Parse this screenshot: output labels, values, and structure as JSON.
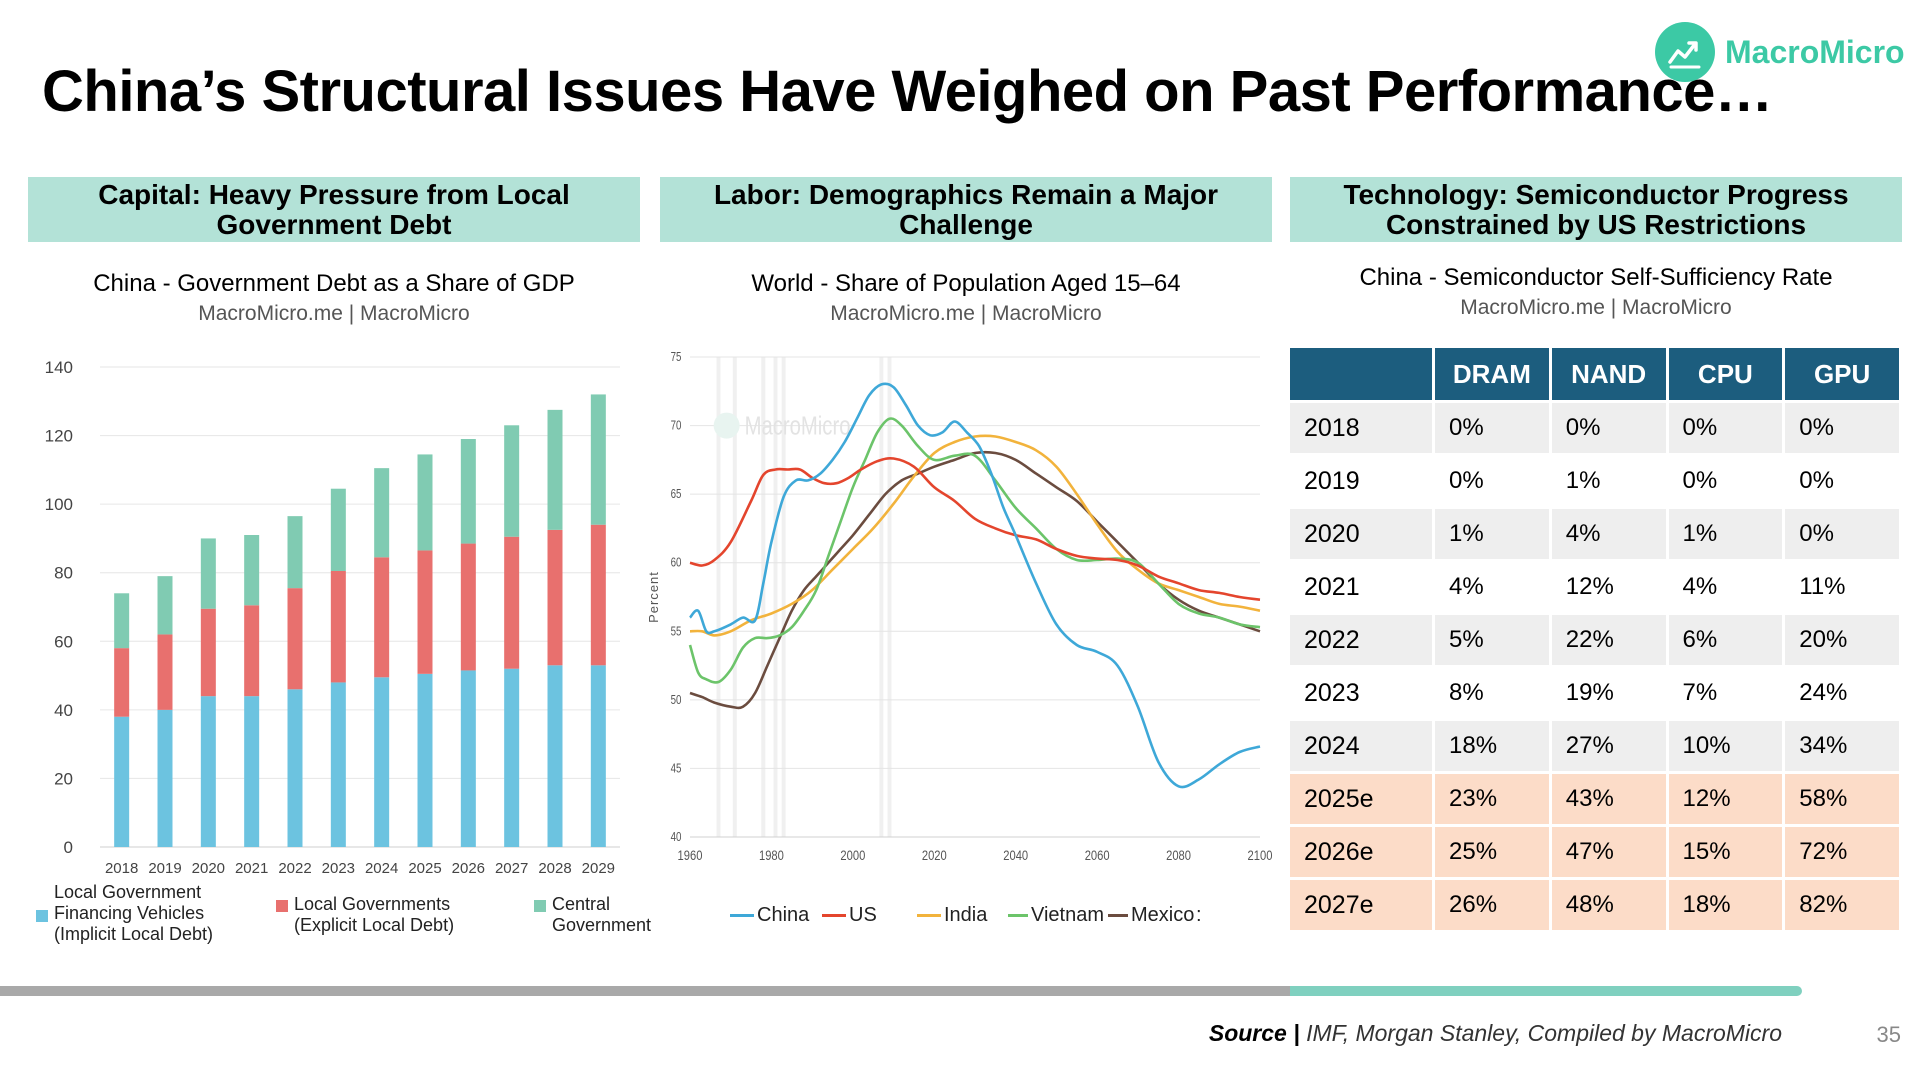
{
  "slide": {
    "title": "China’s Structural Issues Have Weighed on Past Performance…",
    "logo_text": "MacroMicro",
    "source_label": "Source",
    "source_text": "IMF, Morgan Stanley, Compiled by MacroMicro",
    "page_number": "35",
    "colors": {
      "accent": "#3cc9a5",
      "header_bg": "#b3e2d7",
      "table_header": "#1c5d7e",
      "estimate_row": "#fcdcc8"
    }
  },
  "panels": [
    {
      "header": "Capital: Heavy Pressure from Local Government Debt",
      "chart_title": "China - Government Debt as a Share of GDP",
      "chart_source": "MacroMicro.me | MacroMicro"
    },
    {
      "header": "Labor: Demographics Remain a Major Challenge",
      "chart_title": "World - Share of Population Aged 15–64",
      "chart_source": "MacroMicro.me | MacroMicro"
    },
    {
      "header": "Technology: Semiconductor Progress Constrained by US Restrictions",
      "chart_title": "China - Semiconductor Self-Sufficiency Rate",
      "chart_source": "MacroMicro.me | MacroMicro"
    }
  ],
  "chart_data": [
    {
      "type": "bar",
      "stacked": true,
      "title": "China - Government Debt as a Share of GDP",
      "categories": [
        "2018",
        "2019",
        "2020",
        "2021",
        "2022",
        "2023",
        "2024",
        "2025",
        "2026",
        "2027",
        "2028",
        "2029"
      ],
      "series": [
        {
          "name": "Local Government Financing Vehicles (Implicit Local Debt)",
          "color": "#6cc3e0",
          "values": [
            38,
            40,
            44,
            44,
            46,
            48,
            49.5,
            50.5,
            51.5,
            52,
            53,
            53
          ]
        },
        {
          "name": "Local Governments (Explicit Local Debt)",
          "color": "#e8706e",
          "values": [
            20,
            22,
            25.5,
            26.5,
            29.5,
            32.5,
            35,
            36,
            37,
            38.5,
            39.5,
            41
          ]
        },
        {
          "name": "Central Government",
          "color": "#80cbb2",
          "values": [
            16,
            17,
            20.5,
            20.5,
            21,
            24,
            26,
            28,
            30.5,
            32.5,
            35,
            38
          ]
        }
      ],
      "ylim": [
        0,
        140
      ],
      "yticks": [
        0,
        20,
        40,
        60,
        80,
        100,
        120,
        140
      ],
      "xlabel": "",
      "ylabel": "",
      "grid": true,
      "legend": "bottom"
    },
    {
      "type": "line",
      "title": "World - Share of Population Aged 15–64",
      "ylabel": "Percent",
      "xlim": [
        1960,
        2100
      ],
      "ylim": [
        40,
        75
      ],
      "xticks": [
        1960,
        1980,
        2000,
        2020,
        2040,
        2060,
        2080,
        2100
      ],
      "yticks": [
        40,
        45,
        50,
        55,
        60,
        65,
        70,
        75
      ],
      "watermark": "MacroMicro",
      "legend_truncated": ":",
      "series": [
        {
          "name": "China",
          "color": "#3ea8d8",
          "x": [
            1960,
            1962,
            1964,
            1966,
            1970,
            1973,
            1976,
            1978,
            1980,
            1983,
            1986,
            1989,
            1992,
            1995,
            1998,
            2001,
            2004,
            2007,
            2010,
            2013,
            2016,
            2019,
            2022,
            2025,
            2028,
            2031,
            2034,
            2037,
            2040,
            2045,
            2050,
            2055,
            2060,
            2065,
            2070,
            2075,
            2080,
            2085,
            2090,
            2095,
            2100
          ],
          "y": [
            56,
            56.5,
            55,
            55,
            55.5,
            56,
            55.8,
            58.5,
            61.5,
            64.8,
            66,
            66,
            66.5,
            67.5,
            68.8,
            70.5,
            72.2,
            73,
            72.8,
            71.5,
            70,
            69.3,
            69.5,
            70.3,
            69.5,
            68.5,
            66.5,
            64,
            62,
            58.5,
            55.5,
            54,
            53.5,
            52.5,
            49.5,
            45.5,
            43.7,
            44.2,
            45.3,
            46.2,
            46.6
          ]
        },
        {
          "name": "US",
          "color": "#e4452d",
          "x": [
            1960,
            1963,
            1966,
            1970,
            1975,
            1978,
            1981,
            1984,
            1987,
            1990,
            1993,
            1996,
            1999,
            2002,
            2006,
            2010,
            2015,
            2020,
            2025,
            2030,
            2035,
            2040,
            2045,
            2050,
            2055,
            2060,
            2065,
            2070,
            2075,
            2080,
            2085,
            2090,
            2095,
            2100
          ],
          "y": [
            60,
            59.8,
            60.2,
            61.5,
            64.5,
            66.4,
            66.8,
            66.8,
            66.8,
            66.2,
            65.8,
            65.8,
            66.2,
            66.8,
            67.4,
            67.6,
            67,
            65.5,
            64.5,
            63.2,
            62.5,
            62,
            61.7,
            61,
            60.5,
            60.3,
            60.2,
            59.8,
            59,
            58.5,
            58,
            57.8,
            57.5,
            57.3
          ]
        },
        {
          "name": "India",
          "color": "#f2b33c",
          "x": [
            1960,
            1963,
            1966,
            1970,
            1975,
            1980,
            1985,
            1990,
            1995,
            2000,
            2005,
            2010,
            2015,
            2020,
            2025,
            2030,
            2035,
            2040,
            2045,
            2050,
            2055,
            2060,
            2065,
            2070,
            2075,
            2080,
            2085,
            2090,
            2095,
            2100
          ],
          "y": [
            55,
            55,
            54.7,
            55,
            55.8,
            56.3,
            57,
            58,
            59.5,
            61,
            62.5,
            64.3,
            66.3,
            68,
            68.8,
            69.2,
            69.2,
            68.8,
            68.2,
            67,
            65,
            62.8,
            60.8,
            59.5,
            58.5,
            58,
            57.5,
            57,
            56.8,
            56.5
          ]
        },
        {
          "name": "Vietnam",
          "color": "#6cc46a",
          "x": [
            1960,
            1962,
            1964,
            1967,
            1970,
            1973,
            1976,
            1979,
            1982,
            1985,
            1988,
            1991,
            1994,
            1997,
            2000,
            2003,
            2006,
            2009,
            2012,
            2016,
            2020,
            2025,
            2030,
            2035,
            2040,
            2045,
            2050,
            2055,
            2060,
            2065,
            2070,
            2075,
            2080,
            2085,
            2090,
            2095,
            2100
          ],
          "y": [
            54,
            52,
            51.5,
            51.3,
            52.2,
            53.8,
            54.5,
            54.5,
            54.7,
            55.3,
            56.5,
            58,
            60.5,
            63,
            65.5,
            67.5,
            69.5,
            70.5,
            70,
            68.5,
            67.5,
            67.8,
            67.8,
            66,
            64,
            62.5,
            61,
            60.2,
            60.2,
            60.3,
            60,
            58.5,
            57,
            56.3,
            56,
            55.5,
            55.3
          ]
        },
        {
          "name": "Mexico",
          "color": "#6b4c3f",
          "x": [
            1960,
            1963,
            1966,
            1970,
            1973,
            1976,
            1979,
            1982,
            1985,
            1988,
            1991,
            1994,
            1997,
            2000,
            2004,
            2008,
            2012,
            2016,
            2020,
            2025,
            2030,
            2035,
            2040,
            2045,
            2050,
            2055,
            2060,
            2065,
            2070,
            2075,
            2080,
            2085,
            2090,
            2095,
            2100
          ],
          "y": [
            50.5,
            50.2,
            49.8,
            49.5,
            49.5,
            50.5,
            52.5,
            54.5,
            56.5,
            58,
            59,
            60,
            61,
            62,
            63.5,
            65,
            66,
            66.5,
            67,
            67.5,
            68,
            68,
            67.5,
            66.5,
            65.5,
            64.5,
            63,
            61.5,
            60,
            58.5,
            57.3,
            56.5,
            56,
            55.5,
            55
          ]
        }
      ]
    },
    {
      "type": "table",
      "title": "China - Semiconductor Self-Sufficiency Rate",
      "columns": [
        "",
        "DRAM",
        "NAND",
        "CPU",
        "GPU"
      ],
      "rows": [
        [
          "2018",
          "0%",
          "0%",
          "0%",
          "0%"
        ],
        [
          "2019",
          "0%",
          "1%",
          "0%",
          "0%"
        ],
        [
          "2020",
          "1%",
          "4%",
          "1%",
          "0%"
        ],
        [
          "2021",
          "4%",
          "12%",
          "4%",
          "11%"
        ],
        [
          "2022",
          "5%",
          "22%",
          "6%",
          "20%"
        ],
        [
          "2023",
          "8%",
          "19%",
          "7%",
          "24%"
        ],
        [
          "2024",
          "18%",
          "27%",
          "10%",
          "34%"
        ],
        [
          "2025e",
          "23%",
          "43%",
          "12%",
          "58%"
        ],
        [
          "2026e",
          "25%",
          "47%",
          "15%",
          "72%"
        ],
        [
          "2027e",
          "26%",
          "48%",
          "18%",
          "82%"
        ]
      ]
    }
  ]
}
